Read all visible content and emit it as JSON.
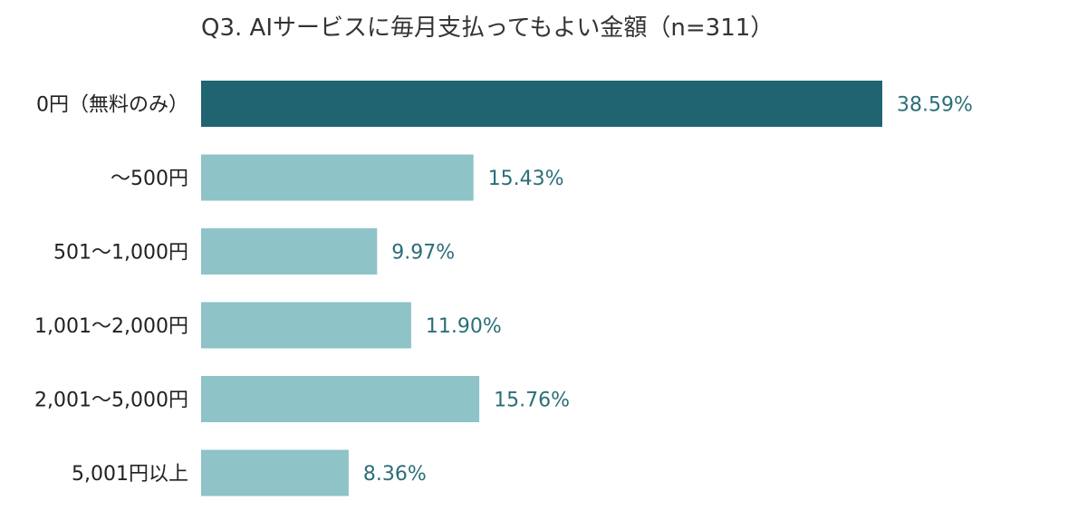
{
  "colors": {
    "highlight_bar": "#1f6470",
    "bar": "#8ec3c8",
    "value_label": "#2b6f78",
    "category_label": "#222222",
    "title": "#333333"
  },
  "chart_data": {
    "type": "bar",
    "orientation": "horizontal",
    "title": "Q3. AIサービスに毎月支払ってもよい金額（n=311）",
    "xlabel": "",
    "ylabel": "",
    "unit": "%",
    "xlim": [
      0,
      40
    ],
    "grid": false,
    "legend": "none",
    "categories": [
      "0円（無料のみ）",
      "〜500円",
      "501〜1,000円",
      "1,001〜2,000円",
      "2,001〜5,000円",
      "5,001円以上"
    ],
    "values": [
      38.59,
      15.43,
      9.97,
      11.9,
      15.76,
      8.36
    ],
    "value_labels": [
      "38.59%",
      "15.43%",
      "9.97%",
      "11.90%",
      "15.76%",
      "8.36%"
    ],
    "highlight_index": 0
  }
}
